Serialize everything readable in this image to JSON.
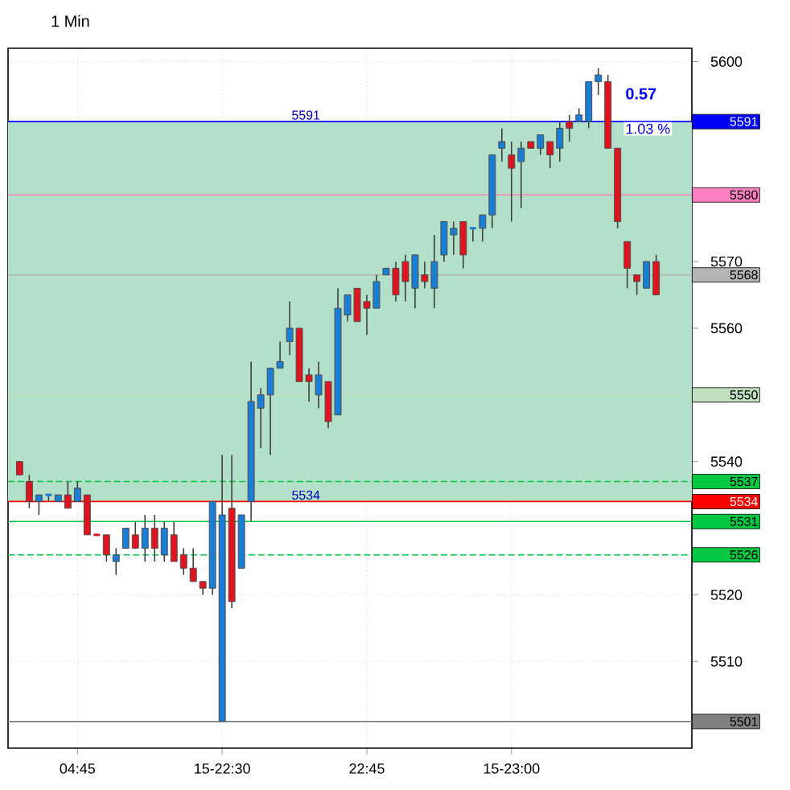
{
  "chart_data": {
    "type": "candlestick",
    "title": "1 Min",
    "categories": [
      null,
      null,
      null,
      null,
      null,
      null,
      "04:45",
      null,
      null,
      null,
      null,
      null,
      null,
      null,
      null,
      null,
      null,
      null,
      null,
      null,
      null,
      "15-22:30",
      null,
      null,
      null,
      null,
      null,
      null,
      null,
      null,
      null,
      null,
      null,
      null,
      null,
      null,
      "22:45",
      null,
      null,
      null,
      null,
      null,
      null,
      null,
      null,
      null,
      null,
      null,
      null,
      null,
      null,
      "15-23:00",
      null,
      null,
      null,
      null,
      null,
      null,
      null,
      null,
      null,
      null,
      null,
      null,
      null,
      null,
      null
    ],
    "ohlc": [
      [
        5540,
        5540,
        5538,
        5538
      ],
      [
        5537,
        5538,
        5533,
        5534
      ],
      [
        5534,
        5535,
        5532,
        5535
      ],
      [
        5535,
        5535,
        5534,
        5535
      ],
      [
        5534,
        5535,
        5534,
        5535
      ],
      [
        5535,
        5537,
        5533,
        5533
      ],
      [
        5534,
        5537,
        5534,
        5536
      ],
      [
        5535,
        5535,
        5529,
        5529
      ],
      [
        5529,
        5529,
        5529,
        5529
      ],
      [
        5529,
        5529,
        5525,
        5526
      ],
      [
        5525,
        5527,
        5523,
        5526
      ],
      [
        5527,
        5530,
        5527,
        5530
      ],
      [
        5529,
        5531,
        5527,
        5527
      ],
      [
        5527,
        5532,
        5525,
        5530
      ],
      [
        5530,
        5532,
        5525,
        5527
      ],
      [
        5526,
        5531,
        5525,
        5530
      ],
      [
        5529,
        5531,
        5525,
        5525
      ],
      [
        5526,
        5527,
        5523,
        5524
      ],
      [
        5524,
        5527,
        5522,
        5522
      ],
      [
        5522,
        5522,
        5520,
        5521
      ],
      [
        5521,
        5534,
        5520,
        5534
      ],
      [
        5501,
        5541,
        5501,
        5532
      ],
      [
        5533,
        5541,
        5518,
        5519
      ],
      [
        5524,
        5532,
        5524,
        5532
      ],
      [
        5534,
        5555,
        5531,
        5549
      ],
      [
        5548,
        5551,
        5542,
        5550
      ],
      [
        5550,
        5554,
        5541,
        5554
      ],
      [
        5554,
        5558,
        5554,
        5555
      ],
      [
        5558,
        5564,
        5556,
        5560
      ],
      [
        5560,
        5560,
        5552,
        5552
      ],
      [
        5553,
        5554,
        5549,
        5552
      ],
      [
        5550,
        5555,
        5548,
        5553
      ],
      [
        5552,
        5552,
        5545,
        5546
      ],
      [
        5547,
        5566,
        5547,
        5563
      ],
      [
        5562,
        5565,
        5561,
        5565
      ],
      [
        5566,
        5566,
        5561,
        5561
      ],
      [
        5564,
        5565,
        5559,
        5563
      ],
      [
        5563,
        5568,
        5563,
        5567
      ],
      [
        5568,
        5569,
        5568,
        5569
      ],
      [
        5569,
        5570,
        5564,
        5565
      ],
      [
        5570,
        5571,
        5564,
        5567
      ],
      [
        5566,
        5571,
        5563,
        5571
      ],
      [
        5568,
        5570,
        5566,
        5567
      ],
      [
        5566,
        5574,
        5563,
        5570
      ],
      [
        5571,
        5576,
        5570,
        5576
      ],
      [
        5574,
        5576,
        5571,
        5575
      ],
      [
        5576,
        5576,
        5569,
        5571
      ],
      [
        5575,
        5575,
        5573,
        5575
      ],
      [
        5575,
        5577,
        5573,
        5577
      ],
      [
        5577,
        5586,
        5575,
        5586
      ],
      [
        5587,
        5590,
        5585,
        5588
      ],
      [
        5586,
        5588,
        5576,
        5584
      ],
      [
        5585,
        5588,
        5578,
        5587
      ],
      [
        5588,
        5588,
        5587,
        5587
      ],
      [
        5587,
        5589,
        5586,
        5589
      ],
      [
        5588,
        5588,
        5584,
        5586
      ],
      [
        5587,
        5591,
        5585,
        5590
      ],
      [
        5591,
        5592,
        5588,
        5590
      ],
      [
        5591,
        5593,
        5591,
        5592
      ],
      [
        5591,
        5597,
        5590,
        5597
      ],
      [
        5597,
        5599,
        5595,
        5598
      ],
      [
        5597,
        5598,
        5587,
        5587
      ],
      [
        5587,
        5587,
        5575,
        5576
      ],
      [
        5573,
        5573,
        5566,
        5569
      ],
      [
        5568,
        5568,
        5565,
        5567
      ],
      [
        5566,
        5570,
        5566,
        5570
      ],
      [
        5570,
        5571,
        5565,
        5565
      ]
    ],
    "colors": [
      "#e0141e",
      "#e0141e",
      "#1a7fd4",
      "#1a7fd4",
      "#1a7fd4",
      "#e0141e",
      "#1a7fd4",
      "#e0141e",
      "#e0141e",
      "#e0141e",
      "#1a7fd4",
      "#1a7fd4",
      "#e0141e",
      "#1a7fd4",
      "#e0141e",
      "#1a7fd4",
      "#e0141e",
      "#e0141e",
      "#e0141e",
      "#e0141e",
      "#1a7fd4",
      "#1a7fd4",
      "#e0141e",
      "#1a7fd4",
      "#1a7fd4",
      "#1a7fd4",
      "#1a7fd4",
      "#1a7fd4",
      "#1a7fd4",
      "#e0141e",
      "#e0141e",
      "#1a7fd4",
      "#e0141e",
      "#1a7fd4",
      "#1a7fd4",
      "#e0141e",
      "#e0141e",
      "#1a7fd4",
      "#1a7fd4",
      "#e0141e",
      "#e0141e",
      "#1a7fd4",
      "#e0141e",
      "#1a7fd4",
      "#1a7fd4",
      "#1a7fd4",
      "#e0141e",
      "#1a7fd4",
      "#1a7fd4",
      "#1a7fd4",
      "#1a7fd4",
      "#e0141e",
      "#1a7fd4",
      "#e0141e",
      "#1a7fd4",
      "#e0141e",
      "#1a7fd4",
      "#e0141e",
      "#1a7fd4",
      "#1a7fd4",
      "#1a7fd4",
      "#e0141e",
      "#e0141e",
      "#e0141e",
      "#e0141e",
      "#1a7fd4",
      "#e0141e"
    ],
    "ylim": [
      5497,
      5602
    ],
    "yticks": [
      5510,
      5520,
      5540,
      5560,
      5570,
      5600
    ],
    "grid": true,
    "bands": [
      {
        "axis": "y",
        "from": 5534,
        "to": 5591,
        "color": "#b2e0c8"
      }
    ],
    "ref_lines": [
      {
        "axis": "y",
        "value": 5591,
        "label": "5591",
        "color": "#0000ff"
      },
      {
        "axis": "y",
        "value": 5580,
        "label": "5580",
        "color": "#ff80c0"
      },
      {
        "axis": "y",
        "value": 5568,
        "label": "5568",
        "color": "#b4b4b4"
      },
      {
        "axis": "y",
        "value": 5550,
        "label": "5550",
        "color": "#c0e0c0"
      },
      {
        "axis": "y",
        "value": 5537,
        "label": "5537",
        "color": "#00c840",
        "line_style": "dashed"
      },
      {
        "axis": "y",
        "value": 5534,
        "label": "5534",
        "color": "#ff0000"
      },
      {
        "axis": "y",
        "value": 5531,
        "label": "5531",
        "color": "#00c840"
      },
      {
        "axis": "y",
        "value": 5526,
        "label": "5526",
        "color": "#00c840",
        "line_style": "dashed"
      },
      {
        "axis": "y",
        "value": 5501,
        "label": "5501",
        "color": "#808080"
      }
    ],
    "annotations": [
      {
        "text": "5591",
        "y": 5591
      },
      {
        "text": "5534",
        "y": 5534
      },
      "0.57",
      "1.03 %"
    ]
  }
}
